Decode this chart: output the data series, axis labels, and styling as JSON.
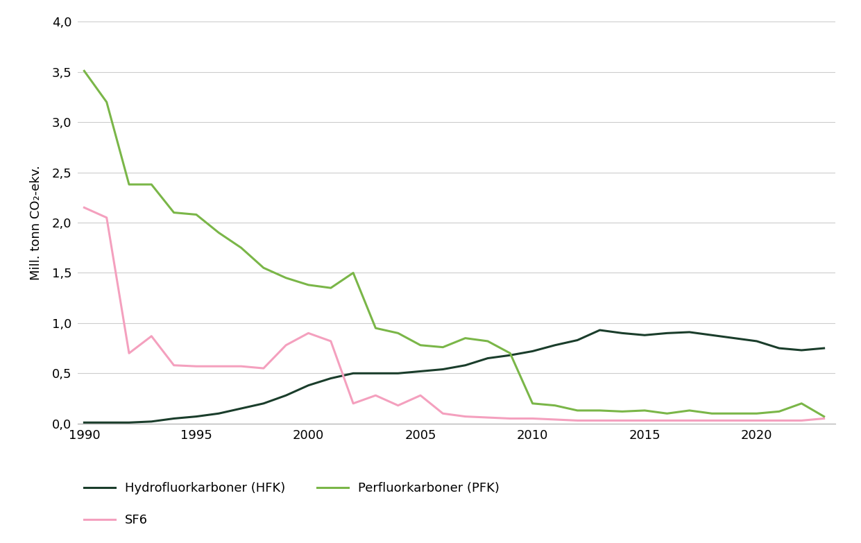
{
  "years": [
    1990,
    1991,
    1992,
    1993,
    1994,
    1995,
    1996,
    1997,
    1998,
    1999,
    2000,
    2001,
    2002,
    2003,
    2004,
    2005,
    2006,
    2007,
    2008,
    2009,
    2010,
    2011,
    2012,
    2013,
    2014,
    2015,
    2016,
    2017,
    2018,
    2019,
    2020,
    2021,
    2022,
    2023
  ],
  "hfk": [
    0.01,
    0.01,
    0.01,
    0.02,
    0.05,
    0.07,
    0.1,
    0.15,
    0.2,
    0.28,
    0.38,
    0.45,
    0.5,
    0.5,
    0.5,
    0.52,
    0.54,
    0.58,
    0.65,
    0.68,
    0.72,
    0.78,
    0.83,
    0.93,
    0.9,
    0.88,
    0.9,
    0.91,
    0.88,
    0.85,
    0.82,
    0.75,
    0.73,
    0.75
  ],
  "pfk": [
    3.51,
    3.2,
    2.38,
    2.38,
    2.1,
    2.08,
    1.9,
    1.75,
    1.55,
    1.45,
    1.38,
    1.35,
    1.5,
    0.95,
    0.9,
    0.78,
    0.76,
    0.85,
    0.82,
    0.7,
    0.2,
    0.18,
    0.13,
    0.13,
    0.12,
    0.13,
    0.1,
    0.13,
    0.1,
    0.1,
    0.1,
    0.12,
    0.2,
    0.07
  ],
  "sf6": [
    2.15,
    2.05,
    0.7,
    0.87,
    0.58,
    0.57,
    0.57,
    0.57,
    0.55,
    0.78,
    0.9,
    0.82,
    0.2,
    0.28,
    0.18,
    0.28,
    0.1,
    0.07,
    0.06,
    0.05,
    0.05,
    0.04,
    0.03,
    0.03,
    0.03,
    0.03,
    0.03,
    0.03,
    0.03,
    0.03,
    0.03,
    0.03,
    0.03,
    0.05
  ],
  "hfk_color": "#1a3d2b",
  "pfk_color": "#7ab648",
  "sf6_color": "#f4a0be",
  "ylabel": "Mill. tonn CO₂-ekv.",
  "ylim": [
    0,
    4.0
  ],
  "yticks": [
    0.0,
    0.5,
    1.0,
    1.5,
    2.0,
    2.5,
    3.0,
    3.5,
    4.0
  ],
  "ytick_labels": [
    "0,0",
    "0,5",
    "1,0",
    "1,5",
    "2,0",
    "2,5",
    "3,0",
    "3,5",
    "4,0"
  ],
  "xlim_min": 1990,
  "xlim_max": 2023,
  "xticks": [
    1990,
    1995,
    2000,
    2005,
    2010,
    2015,
    2020
  ],
  "legend_hfk": "Hydrofluorkarboner (HFK)",
  "legend_pfk": "Perfluorkarboner (PFK)",
  "legend_sf6": "SF6",
  "background_color": "#ffffff",
  "grid_color": "#cccccc",
  "linewidth": 2.2
}
